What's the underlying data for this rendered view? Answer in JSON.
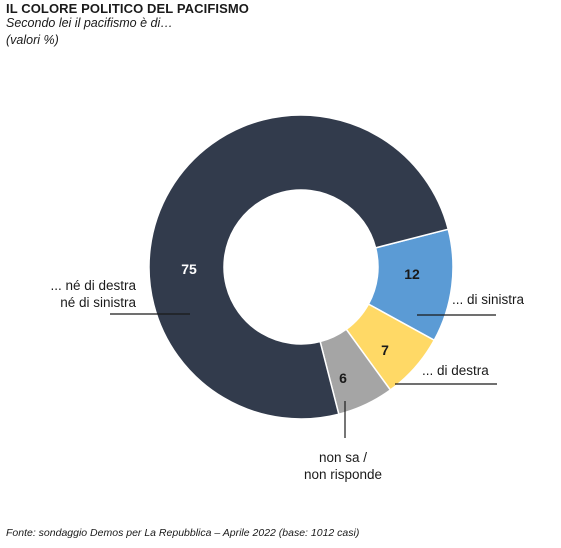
{
  "header": {
    "title": "IL COLORE POLITICO DEL PACIFISMO",
    "subtitle": "Secondo lei il pacifismo è di…",
    "units": "(valori %)"
  },
  "chart_data": {
    "type": "pie",
    "donut": true,
    "slices": [
      {
        "label": "... di sinistra",
        "value": 12,
        "color": "#5b9bd5"
      },
      {
        "label": "... di destra",
        "value": 7,
        "color": "#ffd966"
      },
      {
        "label": "non sa / non risponde",
        "value": 6,
        "color": "#a5a5a5"
      },
      {
        "label": "... né di destra né di sinistra",
        "value": 75,
        "color": "#323b4c"
      }
    ],
    "title": "IL COLORE POLITICO DEL PACIFISMO",
    "subtitle": "Secondo lei il pacifismo è di…",
    "unit": "(valori %)",
    "legend": "none"
  },
  "footer": {
    "source": "Fonte: sondaggio Demos per La Repubblica – Aprile 2022 (base: 1012 casi)"
  }
}
